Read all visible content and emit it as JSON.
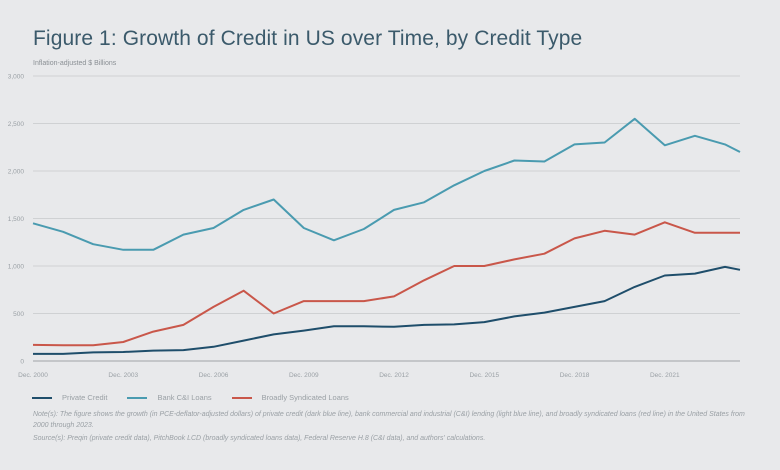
{
  "figure": {
    "title": "Figure 1: Growth of Credit in US over Time, by Credit Type",
    "subtitle": "Inflation-adjusted $ Billions",
    "note": "Note(s): The figure shows the growth (in PCE-deflator-adjusted dollars) of private credit (dark blue line), bank commercial and industrial (C&I) lending (light blue line), and broadly syndicated loans (red line) in the United States from 2000 through 2023.",
    "source": "Source(s): Preqin (private credit data), PitchBook LCD (broadly syndicated loans data), Federal Reserve H.8 (C&I data), and authors' calculations."
  },
  "chart_data": {
    "type": "line",
    "title": "Figure 1: Growth of Credit in US over Time, by Credit Type",
    "xlabel": "",
    "ylabel": "Inflation-adjusted $ Billions",
    "x": [
      2000,
      2001,
      2002,
      2003,
      2004,
      2005,
      2006,
      2007,
      2008,
      2009,
      2010,
      2011,
      2012,
      2013,
      2014,
      2015,
      2016,
      2017,
      2018,
      2019,
      2020,
      2021,
      2022,
      2023,
      2023.5
    ],
    "xlim": [
      2000,
      2023.5
    ],
    "ylim": [
      0,
      3000
    ],
    "x_ticks": [
      2000,
      2003,
      2006,
      2009,
      2012,
      2015,
      2018,
      2021
    ],
    "x_tick_labels": [
      "Dec. 2000",
      "Dec. 2003",
      "Dec. 2006",
      "Dec. 2009",
      "Dec. 2012",
      "Dec. 2015",
      "Dec. 2018",
      "Dec. 2021"
    ],
    "y_ticks": [
      0,
      500,
      1000,
      1500,
      2000,
      2500,
      3000
    ],
    "y_tick_labels": [
      "0",
      "500",
      "1,000",
      "1,500",
      "2,000",
      "2,500",
      "3,000"
    ],
    "grid": true,
    "legend_position": "bottom-left",
    "series": [
      {
        "name": "Private Credit",
        "color": "#1f4e6b",
        "values": [
          75,
          75,
          90,
          95,
          110,
          115,
          150,
          215,
          280,
          320,
          365,
          365,
          360,
          380,
          385,
          410,
          470,
          510,
          570,
          630,
          780,
          900,
          920,
          990,
          960
        ]
      },
      {
        "name": "Bank C&I Loans",
        "color": "#4a9bb0",
        "values": [
          1450,
          1360,
          1230,
          1170,
          1170,
          1330,
          1400,
          1590,
          1700,
          1400,
          1270,
          1390,
          1590,
          1670,
          1850,
          2000,
          2110,
          2100,
          2280,
          2300,
          2550,
          2270,
          2370,
          2280,
          2200
        ]
      },
      {
        "name": "Broadly Syndicated Loans",
        "color": "#c9574a",
        "values": [
          170,
          165,
          165,
          200,
          310,
          380,
          570,
          740,
          500,
          630,
          630,
          630,
          680,
          850,
          1000,
          1000,
          1070,
          1130,
          1290,
          1370,
          1330,
          1460,
          1350,
          1350,
          1350
        ]
      }
    ]
  }
}
